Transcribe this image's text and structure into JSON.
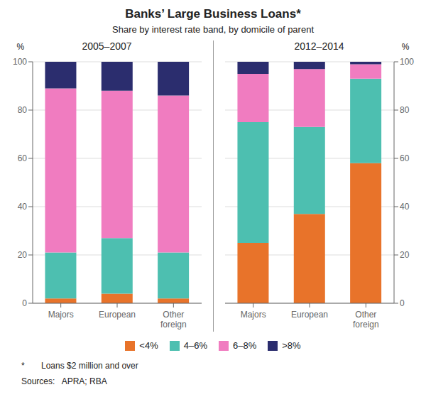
{
  "title": "Banks’ Large Business Loans*",
  "subtitle": "Share by interest rate band, by domicile of parent",
  "annotations": [
    "*       Loans $2 million and over",
    "Sources:   APRA; RBA"
  ],
  "chart_data": [
    {
      "type": "bar",
      "title": "2005–2007",
      "stacked": true,
      "grid": true,
      "legend": "bottom",
      "ylabel": "%",
      "categories": [
        "Majors",
        "European",
        "Other\nforeign"
      ],
      "series": [
        {
          "name": "<4%",
          "color": "#E8732A",
          "values": [
            2,
            4,
            2
          ]
        },
        {
          "name": "4–6%",
          "color": "#4DBFB0",
          "values": [
            19,
            23,
            19
          ]
        },
        {
          "name": "6–8%",
          "color": "#F07CC0",
          "values": [
            68,
            61,
            65
          ]
        },
        {
          "name": ">8%",
          "color": "#2B2D6E",
          "values": [
            11,
            12,
            14
          ]
        }
      ],
      "ylim": [
        0,
        100
      ],
      "yticks": [
        0,
        20,
        40,
        60,
        80,
        100
      ]
    },
    {
      "type": "bar",
      "title": "2012–2014",
      "stacked": true,
      "grid": true,
      "legend": "bottom",
      "ylabel": "%",
      "categories": [
        "Majors",
        "European",
        "Other\nforeign"
      ],
      "series": [
        {
          "name": "<4%",
          "color": "#E8732A",
          "values": [
            25,
            37,
            58
          ]
        },
        {
          "name": "4–6%",
          "color": "#4DBFB0",
          "values": [
            50,
            36,
            35
          ]
        },
        {
          "name": "6–8%",
          "color": "#F07CC0",
          "values": [
            20,
            24,
            6
          ]
        },
        {
          "name": ">8%",
          "color": "#2B2D6E",
          "values": [
            5,
            3,
            1
          ]
        }
      ],
      "ylim": [
        0,
        100
      ],
      "yticks": [
        0,
        20,
        40,
        60,
        80,
        100
      ]
    }
  ]
}
